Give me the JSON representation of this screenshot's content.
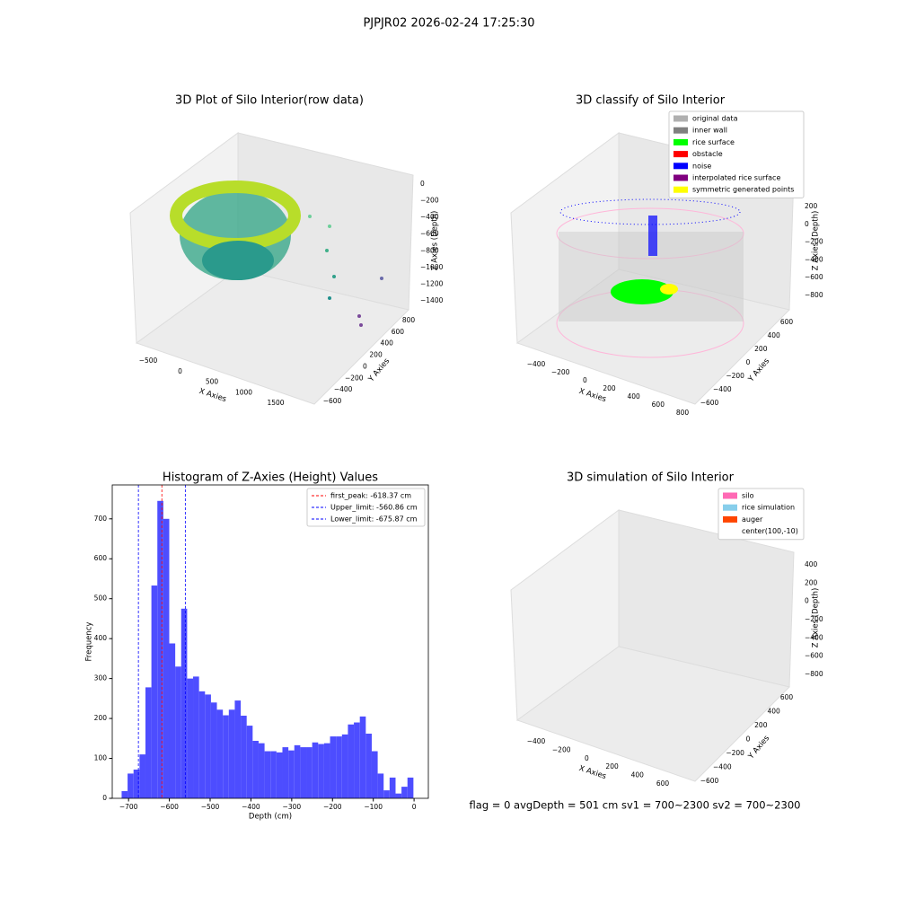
{
  "figure": {
    "title": "PJPJR02 2026-02-24 17:25:30"
  },
  "chart_data": [
    {
      "type": "scatter3d",
      "title": "3D Plot of Silo Interior(row data)",
      "xlabel": "X Axies",
      "ylabel": "Y Axies",
      "zlabel": "Z Axies (Depth)",
      "xticks": [
        {
          "value": -500,
          "label": "−500"
        },
        0,
        500,
        1000,
        1500
      ],
      "yticks": [
        {
          "value": -600,
          "label": "−600"
        },
        {
          "value": -400,
          "label": "−400"
        },
        {
          "value": -200,
          "label": "−200"
        },
        0,
        200,
        400,
        600,
        800
      ],
      "zticks": [
        0,
        {
          "value": -200,
          "label": "−200"
        },
        {
          "value": -400,
          "label": "−400"
        },
        {
          "value": -600,
          "label": "−600"
        },
        {
          "value": -800,
          "label": "−800"
        },
        {
          "value": -1000,
          "label": "−1000"
        },
        {
          "value": -1200,
          "label": "−1200"
        },
        {
          "value": -1400,
          "label": "−1400"
        }
      ]
    },
    {
      "type": "scatter3d",
      "title": "3D classify of Silo Interior",
      "xlabel": "X Axies",
      "ylabel": "Y Axies",
      "zlabel": "Z Axies (Depth)",
      "xticks": [
        {
          "value": -400,
          "label": "−400"
        },
        {
          "value": -200,
          "label": "−200"
        },
        0,
        200,
        400,
        600,
        800
      ],
      "yticks": [
        {
          "value": -600,
          "label": "−600"
        },
        {
          "value": -400,
          "label": "−400"
        },
        {
          "value": -200,
          "label": "−200"
        },
        0,
        200,
        400,
        600
      ],
      "zticks": [
        200,
        0,
        {
          "value": -200,
          "label": "−200"
        },
        {
          "value": -400,
          "label": "−400"
        },
        {
          "value": -600,
          "label": "−600"
        },
        {
          "value": -800,
          "label": "−800"
        }
      ],
      "legend": [
        {
          "name": "original data",
          "color": "#b0b0b0"
        },
        {
          "name": "inner wall",
          "color": "#808080"
        },
        {
          "name": "rice surface",
          "color": "#00ff00"
        },
        {
          "name": "obstacle",
          "color": "#ff0000"
        },
        {
          "name": "noise",
          "color": "#0000ff"
        },
        {
          "name": "interpolated rice surface",
          "color": "#800080"
        },
        {
          "name": "symmetric generated points",
          "color": "#ffff00"
        }
      ]
    },
    {
      "type": "histogram",
      "title": "Histogram of Z-Axies (Height) Values",
      "xlabel": "Depth (cm)",
      "ylabel": "Frequency",
      "color": "#4d4dff",
      "bins": [
        -717.0,
        -702.4,
        -687.8,
        -673.2,
        -658.6,
        -644.0,
        -629.4,
        -614.8,
        -600.2,
        -585.6,
        -571.0,
        -556.4,
        -541.8,
        -527.2,
        -512.6,
        -498.0,
        -483.4,
        -468.8,
        -454.2,
        -439.6,
        -425.0,
        -410.4,
        -395.8,
        -381.2,
        -366.6,
        -352.0,
        -337.4,
        -322.8,
        -308.2,
        -293.6,
        -279.0,
        -264.4,
        -249.8,
        -235.2,
        -220.6,
        -206.0,
        -191.4,
        -176.8,
        -162.2,
        -147.6,
        -133.0,
        -118.4,
        -103.8,
        -89.2,
        -74.6,
        -60.0,
        -45.4,
        -30.8,
        -16.2,
        -1.6
      ],
      "counts": [
        18,
        62,
        72,
        110,
        278,
        533,
        745,
        700,
        388,
        330,
        475,
        300,
        305,
        268,
        260,
        240,
        222,
        208,
        222,
        245,
        207,
        182,
        144,
        138,
        118,
        118,
        115,
        128,
        120,
        133,
        128,
        128,
        140,
        136,
        138,
        155,
        155,
        160,
        185,
        190,
        205,
        162,
        118,
        62,
        20,
        52,
        12,
        29,
        52
      ],
      "xlim": [
        -740,
        35
      ],
      "ylim": [
        0,
        785
      ],
      "xticks": [
        {
          "value": -700,
          "label": "−700"
        },
        {
          "value": -600,
          "label": "−600"
        },
        {
          "value": -500,
          "label": "−500"
        },
        {
          "value": -400,
          "label": "−400"
        },
        {
          "value": -300,
          "label": "−300"
        },
        {
          "value": -200,
          "label": "−200"
        },
        {
          "value": -100,
          "label": "−100"
        },
        0
      ],
      "yticks": [
        0,
        100,
        200,
        300,
        400,
        500,
        600,
        700
      ],
      "vlines": [
        {
          "name": "first_peak: -618.37 cm",
          "value": -618.37,
          "color": "#ff0000"
        },
        {
          "name": "Upper_limit: -560.86 cm",
          "value": -560.86,
          "color": "#0000ff"
        },
        {
          "name": "Lower_limit: -675.87 cm",
          "value": -675.87,
          "color": "#0000ff"
        }
      ],
      "legend_loc": "upper right"
    },
    {
      "type": "scatter3d",
      "title": "3D simulation of Silo Interior",
      "xlabel": "X Axies",
      "ylabel": "Y Axies",
      "zlabel": "Z Axies (Depth)",
      "xticks": [
        {
          "value": -400,
          "label": "−400"
        },
        {
          "value": -200,
          "label": "−200"
        },
        0,
        200,
        400,
        600
      ],
      "yticks": [
        {
          "value": -600,
          "label": "−600"
        },
        {
          "value": -400,
          "label": "−400"
        },
        {
          "value": -200,
          "label": "−200"
        },
        0,
        200,
        400,
        600
      ],
      "zticks": [
        400,
        200,
        0,
        {
          "value": -200,
          "label": "−200"
        },
        {
          "value": -400,
          "label": "−400"
        },
        {
          "value": -600,
          "label": "−600"
        },
        {
          "value": -800,
          "label": "−800"
        }
      ],
      "legend": [
        {
          "name": "silo",
          "color": "#ff69b4"
        },
        {
          "name": "rice simulation",
          "color": "#87ceeb"
        },
        {
          "name": "auger",
          "color": "#ff4500"
        },
        {
          "name": "center(100,-10)",
          "color": null
        }
      ],
      "annotation": "flag = 0    avgDepth = 501 cm  sv1 = 700~2300  sv2 = 700~2300"
    }
  ]
}
